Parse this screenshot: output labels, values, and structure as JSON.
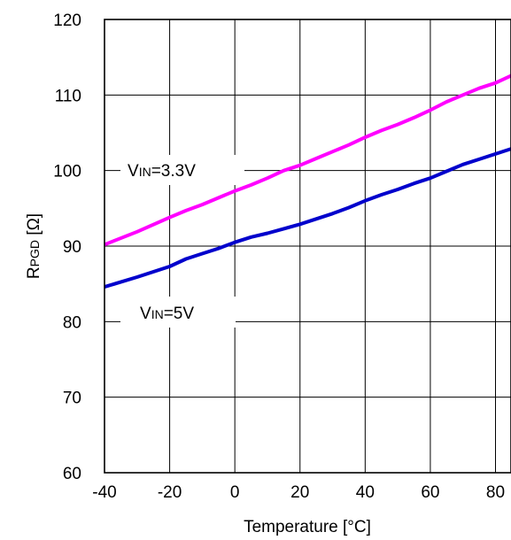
{
  "chart_data": {
    "type": "line",
    "title": "",
    "xlabel": "Temperature [°C]",
    "ylabel": {
      "main": "R",
      "sub": "PGD",
      "unit": " [Ω]"
    },
    "xlim": [
      -40,
      85
    ],
    "ylim": [
      60,
      120
    ],
    "x_ticks": [
      -40,
      -20,
      0,
      20,
      40,
      60,
      80
    ],
    "y_ticks": [
      60,
      70,
      80,
      90,
      100,
      110,
      120
    ],
    "grid": true,
    "series": [
      {
        "color": "#ff00ff",
        "x": [
          -40,
          -30,
          -20,
          -15,
          -10,
          -5,
          0,
          5,
          10,
          15,
          20,
          25,
          30,
          35,
          40,
          45,
          50,
          55,
          60,
          65,
          70,
          75,
          80,
          85
        ],
        "y": [
          90.2,
          91.9,
          93.8,
          94.7,
          95.5,
          96.4,
          97.3,
          98.1,
          99.0,
          100.0,
          100.7,
          101.6,
          102.5,
          103.4,
          104.4,
          105.3,
          106.1,
          107.0,
          108.0,
          109.1,
          110.0,
          110.9,
          111.6,
          112.6
        ]
      },
      {
        "color": "#0000cc",
        "x": [
          -40,
          -30,
          -20,
          -15,
          -10,
          -5,
          0,
          5,
          10,
          15,
          20,
          25,
          30,
          35,
          40,
          45,
          50,
          55,
          60,
          65,
          70,
          75,
          80,
          85
        ],
        "y": [
          84.6,
          85.9,
          87.3,
          88.3,
          89.0,
          89.7,
          90.5,
          91.2,
          91.7,
          92.3,
          92.9,
          93.6,
          94.3,
          95.1,
          96.0,
          96.8,
          97.5,
          98.3,
          99.0,
          99.9,
          100.8,
          101.5,
          102.2,
          102.9
        ]
      }
    ],
    "annotations": [
      {
        "main": "V",
        "sub": "IN",
        "rest": "=3.3V"
      },
      {
        "main": "V",
        "sub": "IN",
        "rest": "=5V"
      }
    ]
  }
}
